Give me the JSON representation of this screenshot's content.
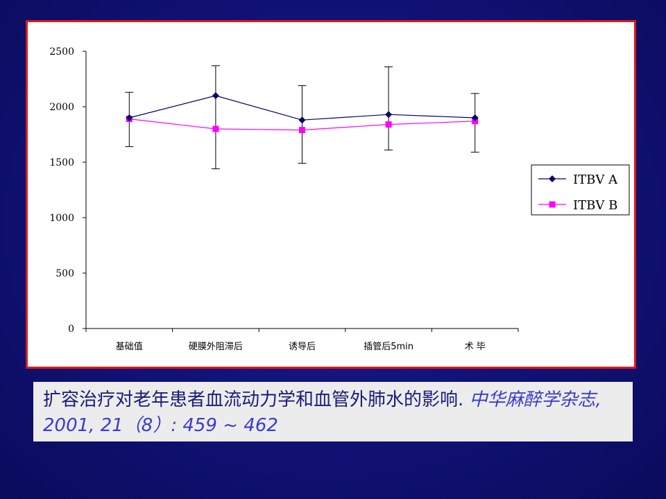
{
  "colors": {
    "series_a": "#000066",
    "series_b": "#ff00ff",
    "frame_border": "#e01818",
    "slide_background": "#12137a"
  },
  "chart_data": {
    "type": "line",
    "categories": [
      "基础值",
      "硬膜外阻滞后",
      "诱导后",
      "插管后5min",
      "术 毕"
    ],
    "ylim": [
      0,
      2500
    ],
    "yticks": [
      0,
      500,
      1000,
      1500,
      2000,
      2500
    ],
    "grid": false,
    "legend_position": "right",
    "series": [
      {
        "name": "ITBV A",
        "marker": "diamond",
        "values": [
          1900,
          2100,
          1880,
          1930,
          1900
        ],
        "error_upper": [
          2130,
          2370,
          2190,
          2360,
          2120
        ],
        "error_lower": [
          1640,
          1440,
          1490,
          1610,
          1590
        ]
      },
      {
        "name": "ITBV B",
        "marker": "square",
        "values": [
          1890,
          1800,
          1790,
          1840,
          1870
        ]
      }
    ]
  },
  "citation": {
    "text": "扩容治疗对老年患者血流动力学和血管外肺水的影响. ",
    "source": "中华麻醉学杂志, 2001, 21（8）: 459 ~ 462"
  }
}
